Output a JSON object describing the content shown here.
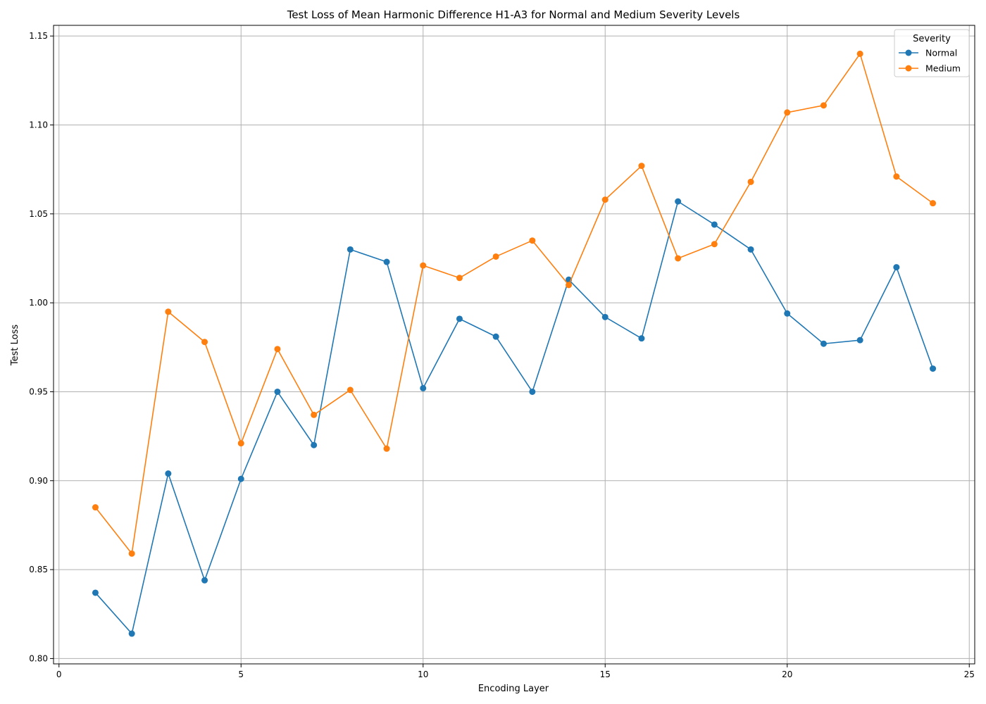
{
  "chart_data": {
    "type": "line",
    "title": "Test Loss of Mean Harmonic Difference H1-A3 for Normal and Medium Severity Levels",
    "xlabel": "Encoding Layer",
    "ylabel": "Test Loss",
    "xlim": [
      -0.15,
      25.15
    ],
    "ylim": [
      0.797,
      1.156
    ],
    "xticks": [
      0,
      5,
      10,
      15,
      20,
      25
    ],
    "xtick_labels": [
      "0",
      "5",
      "10",
      "15",
      "20",
      "25"
    ],
    "yticks": [
      0.8,
      0.85,
      0.9,
      0.95,
      1.0,
      1.05,
      1.1,
      1.15
    ],
    "ytick_labels": [
      "0.80",
      "0.85",
      "0.90",
      "0.95",
      "1.00",
      "1.05",
      "1.10",
      "1.15"
    ],
    "grid": true,
    "legend": {
      "title": "Severity",
      "placement": "top-right"
    },
    "x": [
      1,
      2,
      3,
      4,
      5,
      6,
      7,
      8,
      9,
      10,
      11,
      12,
      13,
      14,
      15,
      16,
      17,
      18,
      19,
      20,
      21,
      22,
      23,
      24
    ],
    "series": [
      {
        "name": "Normal",
        "color": "#1f77b4",
        "values": [
          0.837,
          0.814,
          0.904,
          0.844,
          0.901,
          0.95,
          0.92,
          1.03,
          1.023,
          0.952,
          0.991,
          0.981,
          0.95,
          1.013,
          0.992,
          0.98,
          1.057,
          1.044,
          1.03,
          0.994,
          0.977,
          0.979,
          1.02,
          0.963
        ]
      },
      {
        "name": "Medium",
        "color": "#ff7f0e",
        "values": [
          0.885,
          0.859,
          0.995,
          0.978,
          0.921,
          0.974,
          0.937,
          0.951,
          0.918,
          1.021,
          1.014,
          1.026,
          1.035,
          1.01,
          1.058,
          1.077,
          1.025,
          1.033,
          1.068,
          1.107,
          1.111,
          1.14,
          1.071,
          1.056
        ]
      }
    ]
  }
}
